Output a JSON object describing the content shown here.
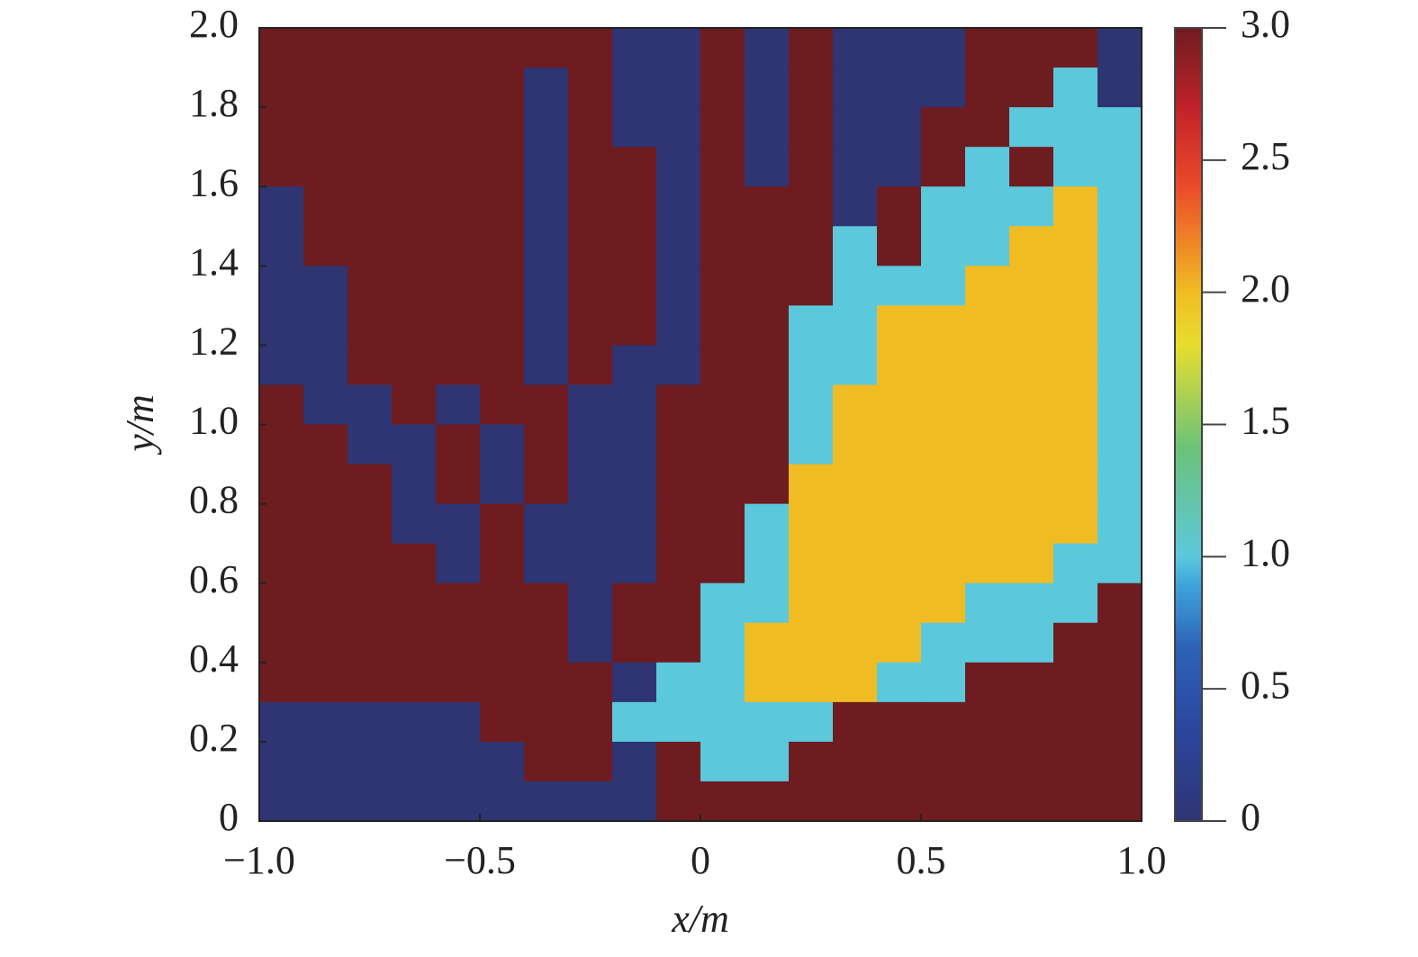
{
  "chart_data": {
    "type": "heatmap",
    "xlabel": "x/m",
    "ylabel": "y/m",
    "xlim": [
      -1,
      1
    ],
    "ylim": [
      0,
      2
    ],
    "xticks": [
      {
        "value": -1,
        "label": "−1.0"
      },
      {
        "value": -0.5,
        "label": "−0.5"
      },
      0,
      0.5,
      {
        "value": 1,
        "label": "1.0"
      }
    ],
    "yticks": [
      0,
      0.2,
      0.4,
      0.6,
      0.8,
      {
        "value": 1,
        "label": "1.0"
      },
      1.2,
      1.4,
      1.6,
      1.8,
      {
        "value": 2,
        "label": "2.0"
      }
    ],
    "colormap": "jet",
    "clim": [
      0,
      3
    ],
    "cticks": [
      0,
      0.5,
      {
        "value": 1,
        "label": "1.0"
      },
      1.5,
      {
        "value": 2,
        "label": "2.0"
      },
      2.5,
      {
        "value": 3,
        "label": "3.0"
      }
    ],
    "z": [
      [
        3,
        3,
        3,
        3,
        3,
        3,
        3,
        3,
        0,
        0,
        3,
        0,
        3,
        0,
        0,
        0,
        3,
        3,
        3,
        0
      ],
      [
        3,
        3,
        3,
        3,
        3,
        3,
        0,
        3,
        0,
        0,
        3,
        0,
        3,
        0,
        0,
        0,
        3,
        3,
        1,
        0
      ],
      [
        3,
        3,
        3,
        3,
        3,
        3,
        0,
        3,
        0,
        0,
        3,
        0,
        3,
        0,
        0,
        3,
        3,
        1,
        1,
        1
      ],
      [
        3,
        3,
        3,
        3,
        3,
        3,
        0,
        3,
        3,
        0,
        3,
        0,
        3,
        0,
        0,
        3,
        1,
        3,
        1,
        1
      ],
      [
        0,
        3,
        3,
        3,
        3,
        3,
        0,
        3,
        3,
        0,
        3,
        3,
        3,
        0,
        3,
        1,
        1,
        1,
        2,
        1
      ],
      [
        0,
        3,
        3,
        3,
        3,
        3,
        0,
        3,
        3,
        0,
        3,
        3,
        3,
        1,
        3,
        1,
        1,
        2,
        2,
        1
      ],
      [
        0,
        0,
        3,
        3,
        3,
        3,
        0,
        3,
        3,
        0,
        3,
        3,
        3,
        1,
        1,
        1,
        2,
        2,
        2,
        1
      ],
      [
        0,
        0,
        3,
        3,
        3,
        3,
        0,
        3,
        3,
        0,
        3,
        3,
        1,
        1,
        2,
        2,
        2,
        2,
        2,
        1
      ],
      [
        0,
        0,
        3,
        3,
        3,
        3,
        0,
        3,
        0,
        0,
        3,
        3,
        1,
        1,
        2,
        2,
        2,
        2,
        2,
        1
      ],
      [
        3,
        0,
        0,
        3,
        0,
        3,
        3,
        0,
        0,
        3,
        3,
        3,
        1,
        2,
        2,
        2,
        2,
        2,
        2,
        1
      ],
      [
        3,
        3,
        0,
        0,
        3,
        0,
        3,
        0,
        0,
        3,
        3,
        3,
        1,
        2,
        2,
        2,
        2,
        2,
        2,
        1
      ],
      [
        3,
        3,
        3,
        0,
        3,
        0,
        3,
        0,
        0,
        3,
        3,
        3,
        2,
        2,
        2,
        2,
        2,
        2,
        2,
        1
      ],
      [
        3,
        3,
        3,
        0,
        0,
        3,
        0,
        0,
        0,
        3,
        3,
        1,
        2,
        2,
        2,
        2,
        2,
        2,
        2,
        1
      ],
      [
        3,
        3,
        3,
        3,
        0,
        3,
        0,
        0,
        0,
        3,
        3,
        1,
        2,
        2,
        2,
        2,
        2,
        2,
        1,
        1
      ],
      [
        3,
        3,
        3,
        3,
        3,
        3,
        3,
        0,
        3,
        3,
        1,
        1,
        2,
        2,
        2,
        2,
        1,
        1,
        1,
        3
      ],
      [
        3,
        3,
        3,
        3,
        3,
        3,
        3,
        0,
        3,
        3,
        1,
        2,
        2,
        2,
        2,
        1,
        1,
        1,
        3,
        3
      ],
      [
        3,
        3,
        3,
        3,
        3,
        3,
        3,
        3,
        0,
        1,
        1,
        2,
        2,
        2,
        1,
        1,
        3,
        3,
        3,
        3
      ],
      [
        0,
        0,
        0,
        0,
        0,
        3,
        3,
        3,
        1,
        1,
        1,
        1,
        1,
        3,
        3,
        3,
        3,
        3,
        3,
        3
      ],
      [
        0,
        0,
        0,
        0,
        0,
        0,
        3,
        3,
        0,
        3,
        1,
        1,
        3,
        3,
        3,
        3,
        3,
        3,
        3,
        3
      ],
      [
        0,
        0,
        0,
        0,
        0,
        0,
        0,
        0,
        0,
        3,
        3,
        3,
        3,
        3,
        3,
        3,
        3,
        3,
        3,
        3
      ]
    ]
  }
}
